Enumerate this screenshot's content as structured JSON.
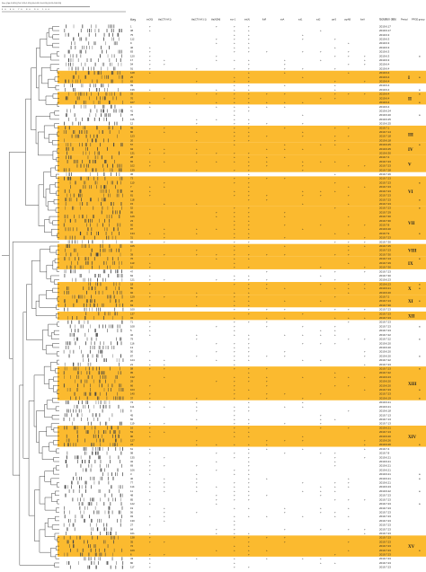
{
  "figure": {
    "header_strip": "Dice (Opt:1.00%) (Tol 1.0%-1.0%) (H>0.0% S>0.0%) [0.0%-100.0%]",
    "scale_numbers": "50 60 70 80 90 100",
    "columns": {
      "key": "Key",
      "genes": [
        "tet(X3)",
        "bla(CTX-M-1)",
        "bla(CTX-M-1-1)",
        "bla(NDM)",
        "mcr-1",
        "tet(A)",
        "floR",
        "strA",
        "sul1",
        "sul2",
        "qnrS",
        "oqxAB",
        "fosA"
      ],
      "date": "Isolation date",
      "period": "Period",
      "pfge": "PFGE group"
    },
    "row_dates": [
      "2019.6.17",
      "2019.6.17",
      "2019.6.3",
      "2019.6.3",
      "2019.6.3",
      "2019.6.3",
      "2019.6.3",
      "2019.6.3",
      "2019.6.3",
      "2019.6.4",
      "2019.6.4",
      "2019.6.4",
      "2019.6.4",
      "2019.6.4",
      "2019.6.4",
      "2019.6.4",
      "2019.6.4",
      "2019.6.4",
      "2019.6.4",
      "2019.6.4",
      "2019.6.24",
      "2019.6.20",
      "2019.6.25",
      "2019.6.25",
      "2019.7.1",
      "2019.7.14",
      "2019.7.18",
      "2019.6.18",
      "2019.6.25",
      "2019.6.25",
      "2019.6.30",
      "2019.7.4",
      "2019.7.23",
      "2019.7.23",
      "2019.7.28",
      "2019.7.26",
      "2019.7.23",
      "2019.7.23",
      "2019.7.23",
      "2019.7.23",
      "2019.7.23",
      "2019.7.23",
      "2019.7.23",
      "2019.7.23",
      "2019.7.29",
      "2019.7.30",
      "2019.7.30",
      "2019.7.8",
      "2019.6.20",
      "2019.7.9",
      "2019.7.23",
      "2019.7.30",
      "2019.7.25",
      "2019.7.23",
      "2019.7.30",
      "2019.7.13",
      "2019.7.29",
      "2019.7.30",
      "2019.7.23",
      "2019.7.30",
      "2019.6.23",
      "2019.6.23",
      "2019.6.21",
      "2019.6.20",
      "2019.7.2",
      "2019.7.13",
      "2019.7.30",
      "2019.7.23",
      "2019.7.23",
      "2019.7.23",
      "2019.7.23",
      "2019.7.23",
      "2019.7.23",
      "2019.7.22",
      "2019.7.22",
      "2019.6.20",
      "2019.6.20",
      "2019.6.20",
      "2019.6.20",
      "2019.7.22",
      "2019.7.23",
      "2019.7.23",
      "2019.7.22",
      "2019.6.23",
      "2019.6.20",
      "2019.6.20",
      "2019.7.23",
      "2019.7.23",
      "2019.6.19",
      "2019.6.21",
      "2019.6.21",
      "2019.6.18",
      "2019.7.13",
      "2019.7.13",
      "2019.7.13",
      "2019.6.21",
      "2019.7.13",
      "2019.6.20",
      "2019.6.26",
      "2019.6.26",
      "2019.7.4",
      "2019.7.8",
      "2019.6.21",
      "2019.6.21",
      "2019.6.21",
      "2019.6.21",
      "2019.6.21",
      "2019.6.21",
      "2019.6.21",
      "2019.6.23",
      "2019.6.22",
      "2019.7.23",
      "2019.7.23",
      "2019.7.23",
      "2019.7.23",
      "2019.7.23",
      "2019.7.23",
      "2019.7.23",
      "2019.7.23",
      "2019.7.23",
      "2019.7.23",
      "2019.7.23",
      "2019.7.23",
      "2019.7.23",
      "2019.7.23",
      "2019.7.23",
      "2019.7.23",
      "2019.7.23",
      "2019.7.23"
    ],
    "groups": [
      "I",
      "II",
      "III",
      "IV",
      "V",
      "VI",
      "VII",
      "VIII",
      "IX",
      "X",
      "XI",
      "XII",
      "XIII",
      "XIV",
      "XV"
    ],
    "band_color": "#fbba2f"
  }
}
